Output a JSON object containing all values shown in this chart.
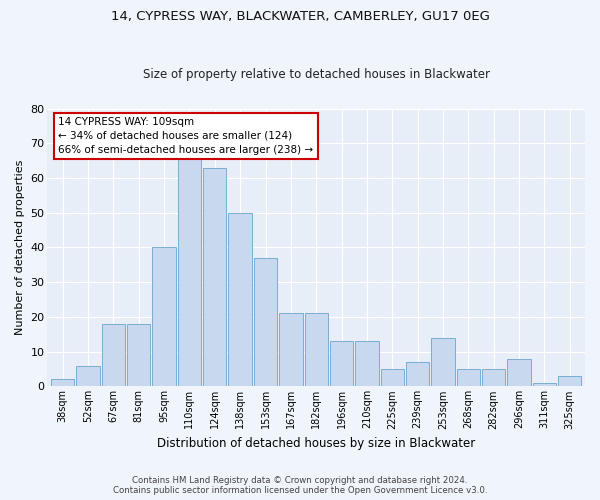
{
  "title1": "14, CYPRESS WAY, BLACKWATER, CAMBERLEY, GU17 0EG",
  "title2": "Size of property relative to detached houses in Blackwater",
  "xlabel": "Distribution of detached houses by size in Blackwater",
  "ylabel": "Number of detached properties",
  "categories": [
    "38sqm",
    "52sqm",
    "67sqm",
    "81sqm",
    "95sqm",
    "110sqm",
    "124sqm",
    "138sqm",
    "153sqm",
    "167sqm",
    "182sqm",
    "196sqm",
    "210sqm",
    "225sqm",
    "239sqm",
    "253sqm",
    "268sqm",
    "282sqm",
    "296sqm",
    "311sqm",
    "325sqm"
  ],
  "bar_values": [
    2,
    6,
    18,
    18,
    40,
    66,
    63,
    50,
    37,
    21,
    21,
    13,
    13,
    5,
    7,
    14,
    5,
    5,
    8,
    1,
    3
  ],
  "bar_color": "#c8d8ee",
  "bar_edge_color": "#7aadd4",
  "annotation_text": "14 CYPRESS WAY: 109sqm\n← 34% of detached houses are smaller (124)\n66% of semi-detached houses are larger (238) →",
  "annotation_box_color": "#ffffff",
  "annotation_box_edge": "#cc0000",
  "ylim": [
    0,
    80
  ],
  "yticks": [
    0,
    10,
    20,
    30,
    40,
    50,
    60,
    70,
    80
  ],
  "footer": "Contains HM Land Registry data © Crown copyright and database right 2024.\nContains public sector information licensed under the Open Government Licence v3.0.",
  "fig_bg_color": "#f0f4fb",
  "plot_bg_color": "#e8eef8"
}
